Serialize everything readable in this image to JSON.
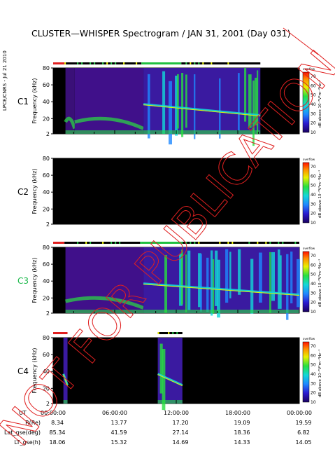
{
  "title": "CLUSTER—WHISPER Spectrogram / JAN 31, 2001 (Day 031)",
  "credit": "LPCE/CNRS - Jul 21 2010",
  "watermark": "NOT FOR PUBLICATION",
  "colors": {
    "watermark": "#e02020",
    "c3_label": "#18b848",
    "plot_bg": "#000000"
  },
  "chart_data": [
    {
      "type": "heatmap",
      "panel": "C1",
      "ylabel": "Frequency (kHz)",
      "yticks": [
        2,
        20,
        40,
        60,
        80
      ],
      "ylim": [
        2,
        80
      ],
      "xlim": [
        "00:00:00",
        "24:00:00"
      ],
      "coverage": [
        [
          1.2,
          2.1,
          "low"
        ],
        [
          2.1,
          8.8,
          "mid"
        ],
        [
          8.8,
          20.2,
          "active"
        ]
      ],
      "status_bar": [
        [
          0,
          1.1,
          "red"
        ],
        [
          1.1,
          8.6,
          "mixed"
        ],
        [
          8.6,
          12.5,
          "green"
        ],
        [
          12.5,
          20.2,
          "mixed"
        ]
      ]
    },
    {
      "type": "heatmap",
      "panel": "C2",
      "ylabel": "Frequency (kHz)",
      "yticks": [
        2,
        20,
        40,
        60,
        80
      ],
      "ylim": [
        2,
        80
      ],
      "coverage": [],
      "status_bar": []
    },
    {
      "type": "heatmap",
      "panel": "C3",
      "ylabel": "Frequency (kHz)",
      "yticks": [
        2,
        20,
        40,
        60,
        80
      ],
      "ylim": [
        2,
        80
      ],
      "coverage": [
        [
          1.2,
          8.8,
          "mid"
        ],
        [
          8.8,
          24,
          "active"
        ]
      ],
      "status_bar": [
        [
          0,
          1.1,
          "red"
        ],
        [
          1.1,
          8.6,
          "mixed"
        ],
        [
          8.6,
          12.5,
          "green"
        ],
        [
          12.5,
          24,
          "mixed"
        ]
      ]
    },
    {
      "type": "heatmap",
      "panel": "C4",
      "ylabel": "Frequency (kHz)",
      "yticks": [
        2,
        20,
        40,
        60,
        80
      ],
      "ylim": [
        2,
        80
      ],
      "coverage": [
        [
          1.0,
          1.4,
          "active"
        ],
        [
          10.2,
          12.6,
          "active"
        ]
      ],
      "status_bar": [
        [
          0,
          1.4,
          "red"
        ],
        [
          10.2,
          11.2,
          "mixed"
        ],
        [
          11.2,
          12.6,
          "mixed"
        ]
      ]
    }
  ],
  "colorbar": {
    "ticks": [
      10,
      20,
      30,
      40,
      50,
      60,
      70
    ],
    "top_label": "overflow",
    "label": "dB above 10⁻⁸V²m⁻²Hz⁻¹"
  },
  "panels": [
    "C1",
    "C2",
    "C3",
    "C4"
  ],
  "axis": {
    "ut_label": "UT",
    "ticks": [
      "00:00:00",
      "06:00:00",
      "12:00:00",
      "18:00:00",
      "00:00:00"
    ],
    "rows": [
      {
        "label": "R(Re)",
        "values": [
          "8.34",
          "13.77",
          "17.20",
          "19.09",
          "19.59"
        ]
      },
      {
        "label": "Lat_gse(deg)",
        "values": [
          "85.34",
          "41.59",
          "27.14",
          "18.36",
          "6.82"
        ]
      },
      {
        "label": "LT_gse(h)",
        "values": [
          "18.06",
          "15.32",
          "14.69",
          "14.33",
          "14.05"
        ]
      }
    ]
  }
}
